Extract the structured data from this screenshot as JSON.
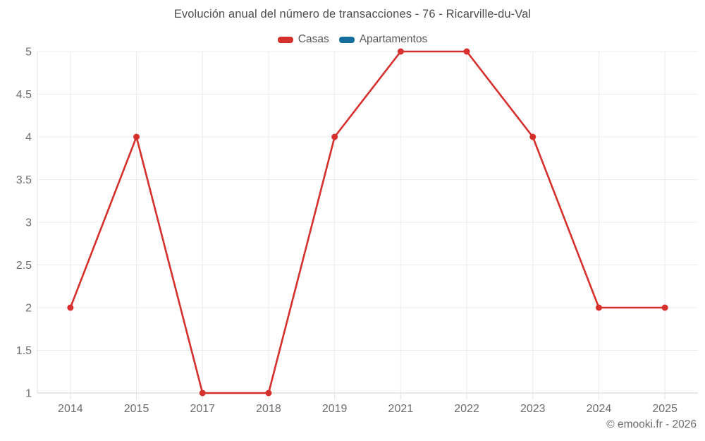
{
  "chart_data": {
    "type": "line",
    "title": "Evolución anual del número de transacciones - 76 - Ricarville-du-Val",
    "categories": [
      "2014",
      "2015",
      "2017",
      "2018",
      "2019",
      "2021",
      "2022",
      "2023",
      "2024",
      "2025"
    ],
    "series": [
      {
        "name": "Casas",
        "color": "#d6302d",
        "values": [
          2,
          4,
          1,
          1,
          4,
          5,
          5,
          4,
          2,
          2
        ]
      },
      {
        "name": "Apartamentos",
        "color": "#156f9e",
        "values": []
      }
    ],
    "ylim": [
      1,
      5
    ],
    "yticks": [
      1,
      1.5,
      2,
      2.5,
      3,
      3.5,
      4,
      4.5,
      5
    ],
    "ytick_labels": [
      "1",
      "1.5",
      "2",
      "2.5",
      "3",
      "3.5",
      "4",
      "4.5",
      "5"
    ],
    "xlabel": "",
    "ylabel": "",
    "grid": true,
    "legend_position": "top"
  },
  "footer": {
    "copyright": "© emooki.fr - 2026"
  },
  "theme": {
    "grid_color": "#ececec",
    "axis_color": "#d2d2d2",
    "tick_color": "#e2e2e2",
    "label_color": "#6d6d6d",
    "title_color": "#4d4d4d",
    "legend_text_color": "#565656",
    "background": "#ffffff"
  }
}
